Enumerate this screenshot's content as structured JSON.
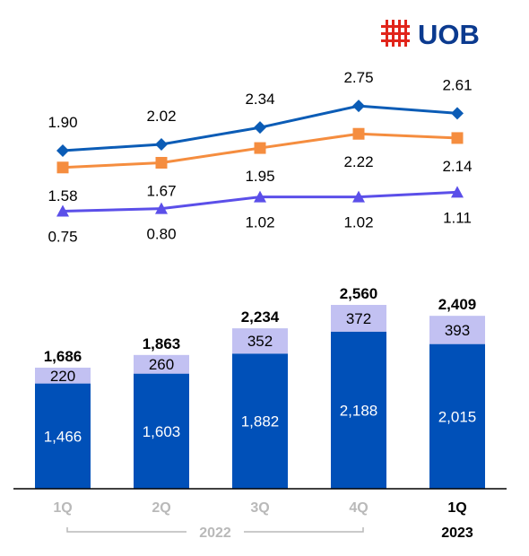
{
  "brand": {
    "name": "UOB",
    "logo_color": "#e1251b",
    "text_color": "#0b3a8f"
  },
  "chart_data": [
    {
      "type": "line",
      "categories": [
        "1Q",
        "2Q",
        "3Q",
        "4Q",
        "1Q"
      ],
      "series": [
        {
          "values": [
            1.9,
            2.02,
            2.34,
            2.75,
            2.61
          ],
          "labels": [
            "1.90",
            "2.02",
            "2.34",
            "2.75",
            "2.61"
          ],
          "color": "#0b5cb6",
          "marker": "diamond"
        },
        {
          "values": [
            1.58,
            1.67,
            1.95,
            2.22,
            2.14
          ],
          "labels": [
            "1.58",
            "1.67",
            "1.95",
            "2.22",
            "2.14"
          ],
          "color": "#f58d3f",
          "marker": "square"
        },
        {
          "values": [
            0.75,
            0.8,
            1.02,
            1.02,
            1.11
          ],
          "labels": [
            "0.75",
            "0.80",
            "1.02",
            "1.02",
            "1.11"
          ],
          "color": "#5b4fe9",
          "marker": "triangle"
        }
      ]
    },
    {
      "type": "bar",
      "stacked": true,
      "categories": [
        "1Q",
        "2Q",
        "3Q",
        "4Q",
        "1Q"
      ],
      "category_colors": [
        "#b9b9b9",
        "#b9b9b9",
        "#b9b9b9",
        "#b9b9b9",
        "#000000"
      ],
      "groups": [
        {
          "label": "2022",
          "span": [
            0,
            3
          ],
          "color": "#b9b9b9"
        },
        {
          "label": "2023",
          "span": [
            4,
            4
          ],
          "color": "#000000"
        }
      ],
      "series": [
        {
          "values": [
            1466,
            1603,
            1882,
            2188,
            2015
          ],
          "labels": [
            "1,466",
            "1,603",
            "1,882",
            "2,188",
            "2,015"
          ],
          "color": "#0050b8",
          "label_color": "#ffffff"
        },
        {
          "values": [
            220,
            260,
            352,
            372,
            393
          ],
          "labels": [
            "220",
            "260",
            "352",
            "372",
            "393"
          ],
          "color": "#c2c1f2",
          "label_color": "#000000"
        }
      ],
      "totals": [
        1686,
        1863,
        2234,
        2560,
        2409
      ],
      "total_labels": [
        "1,686",
        "1,863",
        "2,234",
        "2,560",
        "2,409"
      ]
    }
  ]
}
